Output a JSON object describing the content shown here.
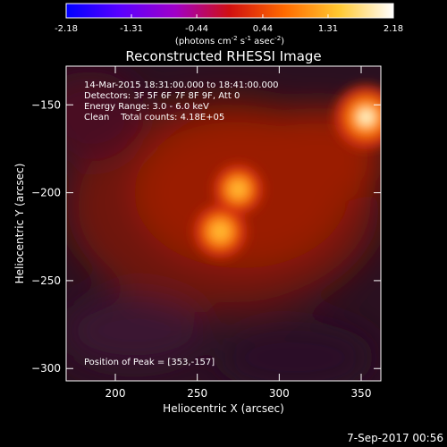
{
  "chart_data": {
    "type": "heatmap",
    "title": "Reconstructed RHESSI Image",
    "colorbar": {
      "min": -2.18,
      "max": 2.18,
      "ticks": [
        "-2.18",
        "-1.31",
        "-0.44",
        "0.44",
        "1.31",
        "2.18"
      ],
      "label_main": "(photons cm",
      "label_sup1": "-2",
      "label_mid1": " s",
      "label_sup2": "-1",
      "label_mid2": " asec",
      "label_sup3": "-2",
      "label_end": ")",
      "colormap": [
        "#0000ff",
        "#5a00ff",
        "#a000c8",
        "#d01010",
        "#ff6a00",
        "#ffc830",
        "#ffffff"
      ]
    },
    "info_lines": [
      "14-Mar-2015 18:31:00.000 to 18:41:00.000",
      "Detectors: 3F 5F 6F 7F 8F 9F, Att 0",
      "Energy Range: 3.0 - 6.0 keV",
      "Clean    Total counts: 4.18E+05"
    ],
    "peak_text": "Position of Peak = [353,-157]",
    "xlabel": "Heliocentric X (arcsec)",
    "ylabel": "Heliocentric Y (arcsec)",
    "xlim": [
      170,
      362
    ],
    "ylim": [
      -307,
      -128
    ],
    "x_ticks": [
      200,
      250,
      300,
      350
    ],
    "y_ticks": [
      -150,
      -200,
      -250,
      -300
    ],
    "sources": [
      {
        "x": 353,
        "y": -157,
        "intensity": 2.18
      },
      {
        "x": 275,
        "y": -198,
        "intensity": 1.6
      },
      {
        "x": 264,
        "y": -222,
        "intensity": 1.75
      }
    ],
    "timestamp": "7-Sep-2017 00:56"
  }
}
